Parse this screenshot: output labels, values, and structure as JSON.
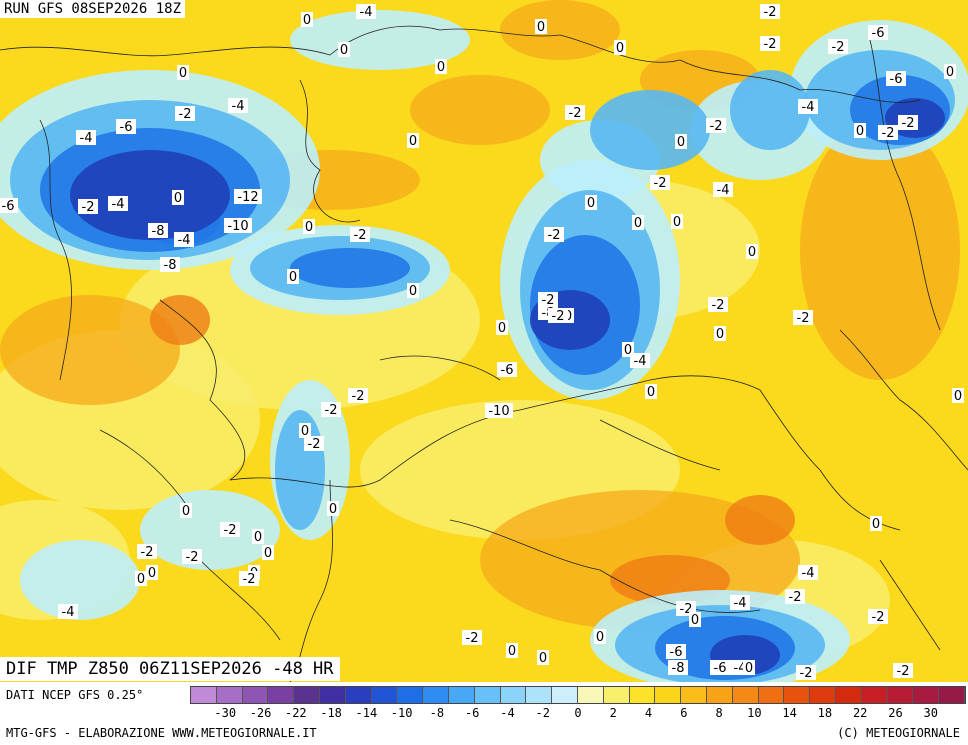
{
  "header": {
    "run_label": "RUN GFS 08SEP2026 18Z"
  },
  "field_label": "DIF TMP Z850 06Z11SEP2026 -48 HR",
  "footer": {
    "source": "DATI NCEP GFS 0.25°",
    "credits_left": "MTG-GFS - ELABORAZIONE WWW.METEOGIORNALE.IT",
    "credits_right": "(C) METEOGIORNALE"
  },
  "legend": {
    "colors": [
      "#c08ad8",
      "#a66ec6",
      "#8e55b3",
      "#7a3fa2",
      "#5a3391",
      "#3f2fa3",
      "#2a3fbf",
      "#2155d6",
      "#1e6ee8",
      "#2e8cf2",
      "#47a8f6",
      "#67c0f8",
      "#8ad4fa",
      "#ace3fb",
      "#cdeffc",
      "#f7f8b8",
      "#f8f06a",
      "#fde22a",
      "#fcd41a",
      "#fbbd19",
      "#f8a317",
      "#f48a15",
      "#ef6f12",
      "#e8520f",
      "#de3b0e",
      "#d42a0e",
      "#c71f25",
      "#b81c34",
      "#a71b40",
      "#951a48"
    ],
    "ticks": [
      "-30",
      "-26",
      "-22",
      "-18",
      "-14",
      "-10",
      "-8",
      "-6",
      "-4",
      "-2",
      "0",
      "2",
      "4",
      "6",
      "8",
      "10",
      "14",
      "18",
      "22",
      "26",
      "30"
    ]
  },
  "map": {
    "colors": {
      "warm_base": "#fbd91d",
      "warm_light": "#f8ec6a",
      "warm_orange": "#f5a91a",
      "warm_deep": "#ef7d14",
      "cool_light": "#bdeefc",
      "cool_mid": "#58b7f2",
      "cool_blue": "#2178e6",
      "cool_deep": "#2040b8"
    },
    "contour_labels": [
      "RUN",
      "-4",
      "0",
      "0",
      "0",
      "0",
      "0",
      "-2",
      "-4",
      "0",
      "-2",
      "-4",
      "-6",
      "-6",
      "0",
      "0",
      "0",
      "-2",
      "0",
      "-2",
      "-2",
      "-2",
      "-6",
      "-4",
      "0",
      "-2",
      "-2",
      "0",
      "-2",
      "0",
      "0",
      "-8",
      "-4",
      "0",
      "-12",
      "-10",
      "-4",
      "-2",
      "-8",
      "-6",
      "-2",
      "-4",
      "0",
      "0",
      "-2",
      "0",
      "-2",
      "0",
      "0",
      "-6",
      "-10",
      "-8",
      "0",
      "-2",
      "0",
      "-4",
      "-2",
      "-2",
      "0",
      "0",
      "-2",
      "-2",
      "0",
      "-2",
      "0",
      "-2",
      "0",
      "0",
      "-2",
      "-2",
      "0",
      "0",
      "0",
      "-2",
      "-4",
      "0",
      "-2",
      "0",
      "0",
      "0",
      "-2",
      "-4",
      "-2",
      "0",
      "-4",
      "0",
      "-2",
      "-6",
      "-8",
      "-6",
      "-4",
      "0",
      "-2",
      "-2",
      "0"
    ]
  }
}
